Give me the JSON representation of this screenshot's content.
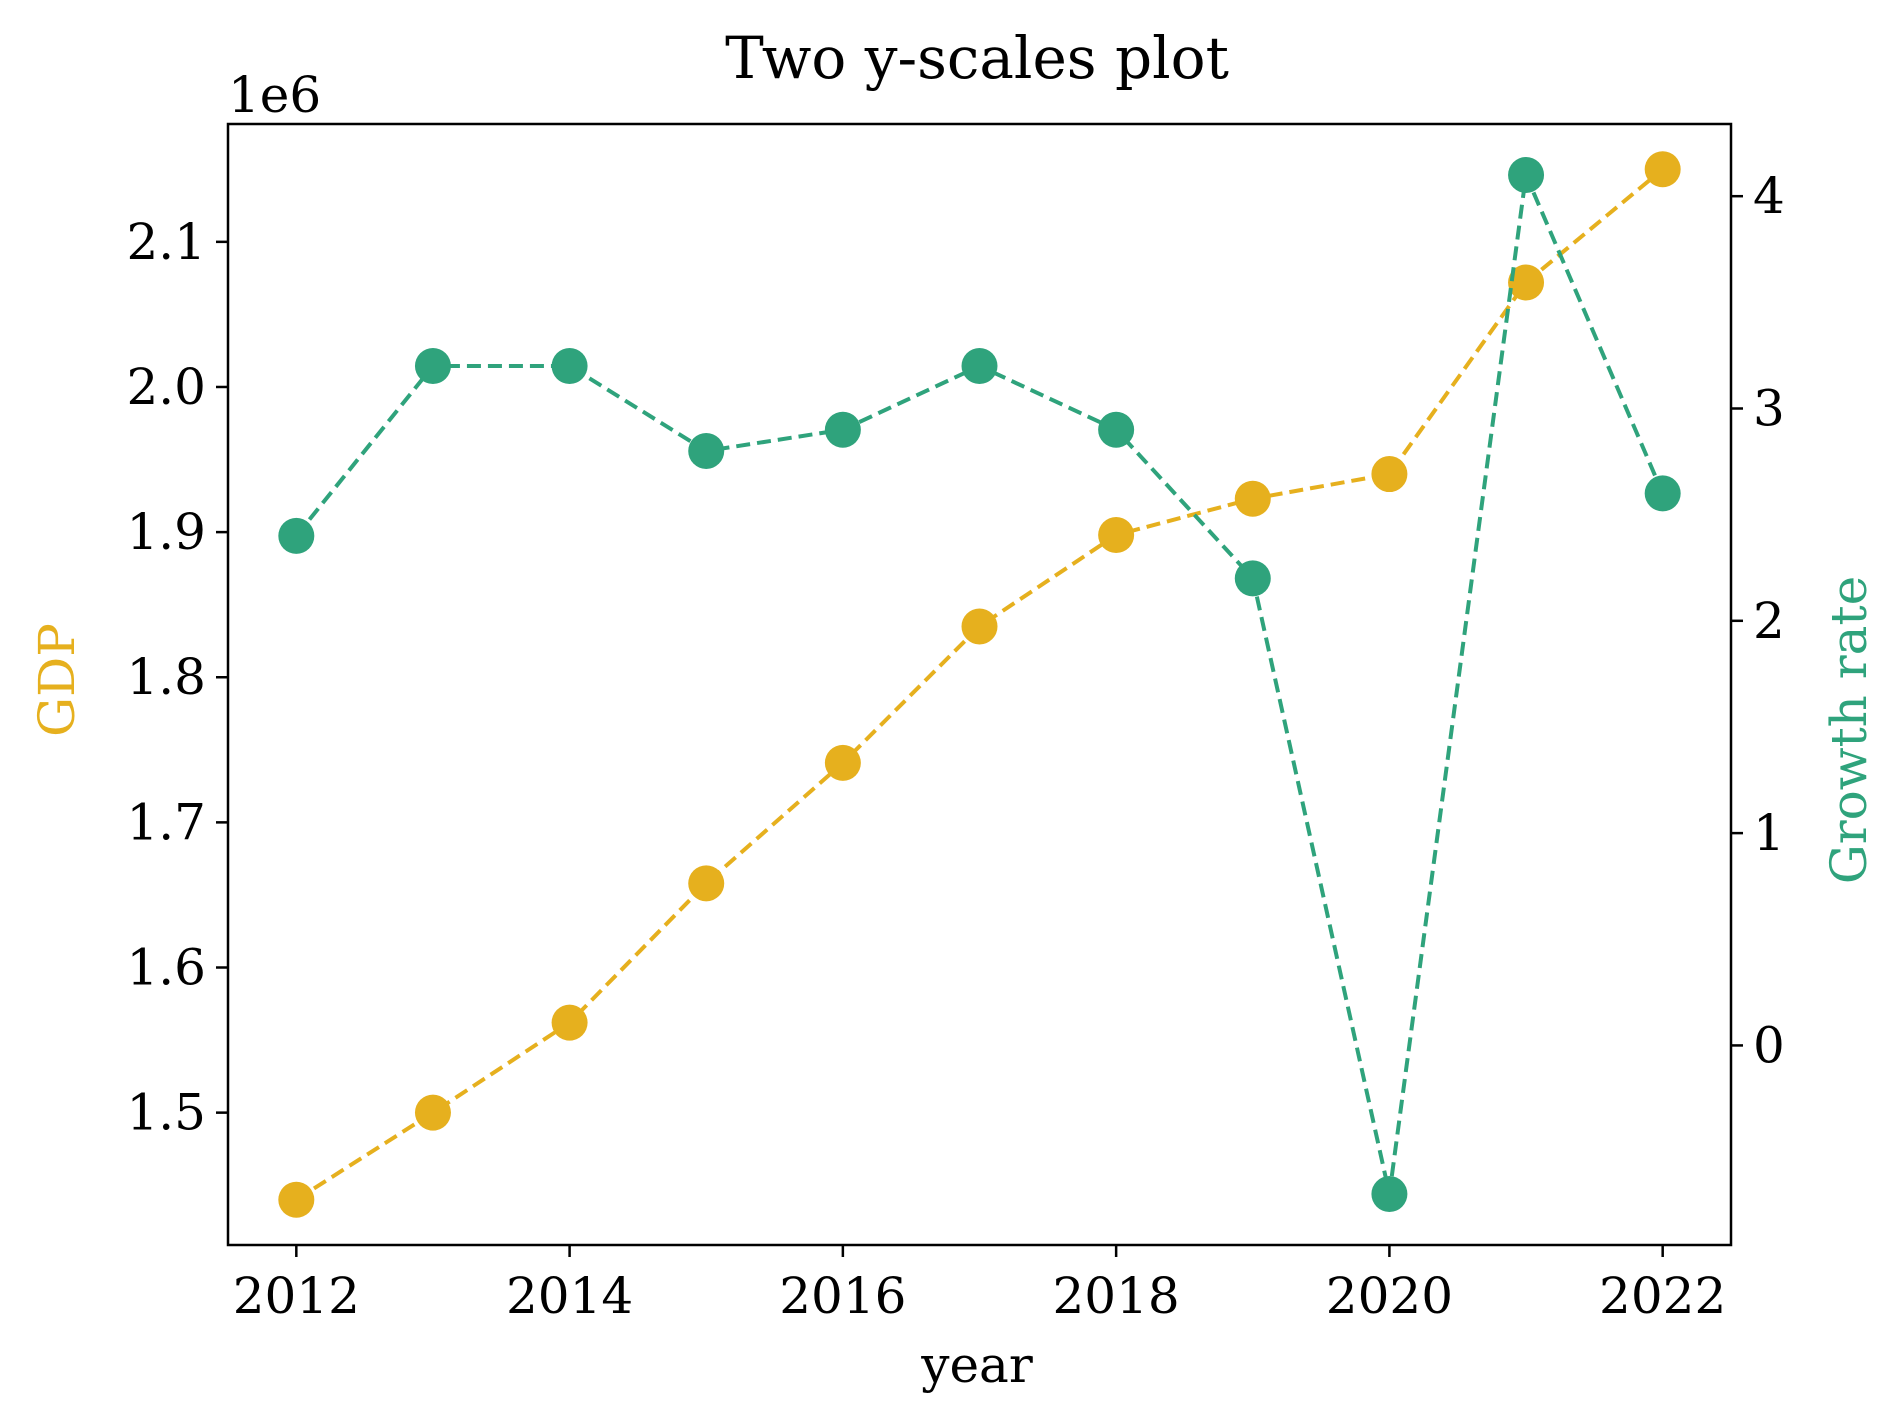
{
  "chart_data": {
    "type": "line",
    "title": "Two y-scales plot",
    "xlabel": "year",
    "x": [
      2012,
      2013,
      2014,
      2015,
      2016,
      2017,
      2018,
      2019,
      2020,
      2021,
      2022
    ],
    "x_ticks": [
      "2012",
      "2014",
      "2016",
      "2018",
      "2020",
      "2022"
    ],
    "xlim": [
      2011.5,
      2022.5
    ],
    "left_axis": {
      "label": "GDP",
      "offset_text": "1e6",
      "color": "#e6b01e",
      "ylim": [
        1.4088,
        2.1812
      ],
      "ticks": [
        "1.5",
        "1.6",
        "1.7",
        "1.8",
        "1.9",
        "2.0",
        "2.1"
      ],
      "tick_values": [
        1.5,
        1.6,
        1.7,
        1.8,
        1.9,
        2.0,
        2.1
      ]
    },
    "right_axis": {
      "label": "Growth rate",
      "color": "#2fa37c",
      "ylim": [
        -0.94,
        4.34
      ],
      "ticks": [
        "0",
        "1",
        "2",
        "3",
        "4"
      ],
      "tick_values": [
        0,
        1,
        2,
        3,
        4
      ]
    },
    "series": [
      {
        "name": "GDP",
        "axis": "left",
        "color": "#e6b01e",
        "line_style": "dashed",
        "marker": "circle",
        "values": [
          1.44,
          1.5,
          1.562,
          1.658,
          1.741,
          1.835,
          1.898,
          1.923,
          1.94,
          2.072,
          2.15
        ]
      },
      {
        "name": "Growth rate",
        "axis": "right",
        "color": "#2fa37c",
        "line_style": "dashed",
        "marker": "circle",
        "values": [
          2.4,
          3.2,
          3.2,
          2.8,
          2.9,
          3.2,
          2.9,
          2.2,
          -0.7,
          4.1,
          2.6
        ]
      }
    ],
    "grid": false
  }
}
